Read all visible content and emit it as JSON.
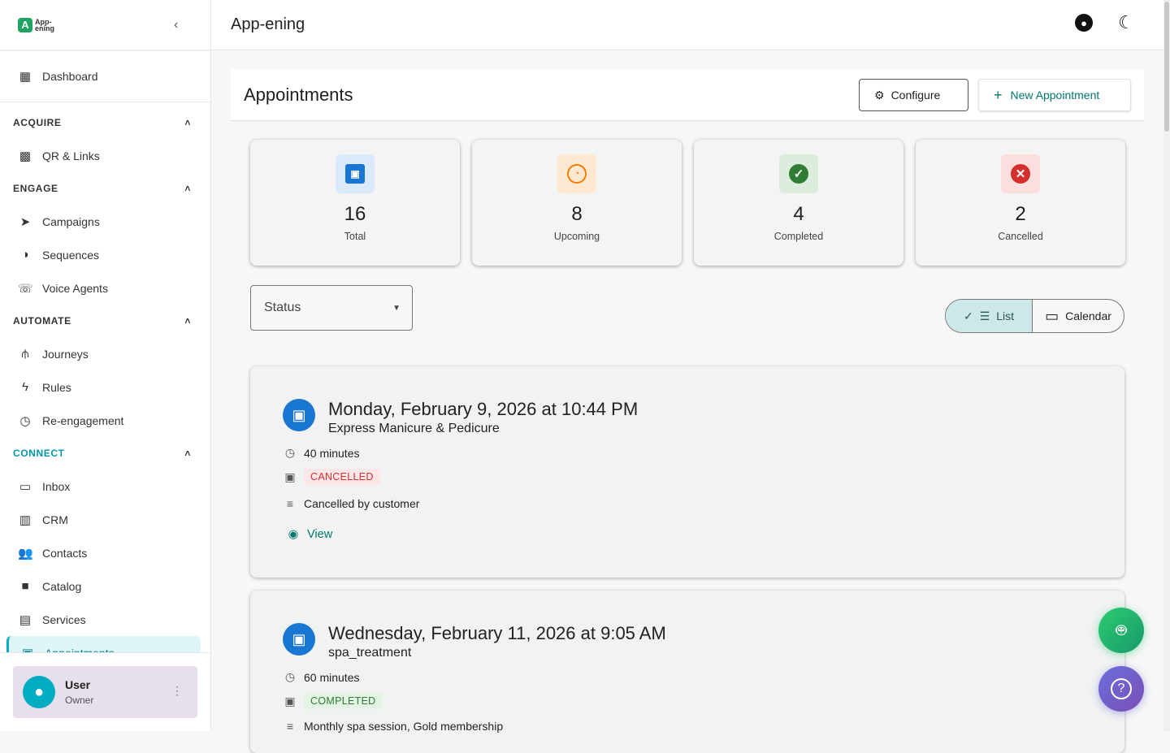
{
  "app": {
    "logo_text": "App-ening",
    "title": "App-ening"
  },
  "sidebar": {
    "dashboard": "Dashboard",
    "sections": [
      {
        "label": "ACQUIRE",
        "items": [
          {
            "label": "QR & Links",
            "icon": "qr-code-icon"
          }
        ]
      },
      {
        "label": "ENGAGE",
        "items": [
          {
            "label": "Campaigns",
            "icon": "send-icon"
          },
          {
            "label": "Sequences",
            "icon": "sequences-icon"
          },
          {
            "label": "Voice Agents",
            "icon": "phone-icon"
          }
        ]
      },
      {
        "label": "AUTOMATE",
        "items": [
          {
            "label": "Journeys",
            "icon": "route-icon"
          },
          {
            "label": "Rules",
            "icon": "bolt-icon"
          },
          {
            "label": "Re-engagement",
            "icon": "clock-icon"
          }
        ]
      },
      {
        "label": "CONNECT",
        "items": [
          {
            "label": "Inbox",
            "icon": "inbox-icon"
          },
          {
            "label": "CRM",
            "icon": "board-icon"
          },
          {
            "label": "Contacts",
            "icon": "people-icon"
          },
          {
            "label": "Catalog",
            "icon": "bag-icon"
          },
          {
            "label": "Services",
            "icon": "store-icon"
          },
          {
            "label": "Appointments",
            "icon": "calendar-icon"
          }
        ]
      }
    ],
    "user": {
      "name": "User",
      "role": "Owner"
    }
  },
  "page": {
    "title": "Appointments",
    "configure": "Configure",
    "new": "New Appointment"
  },
  "stats": [
    {
      "value": "16",
      "label": "Total",
      "color": "#1976d2",
      "bg": "#dbeafb"
    },
    {
      "value": "8",
      "label": "Upcoming",
      "color": "#f57c00",
      "bg": "#fde9d2"
    },
    {
      "value": "4",
      "label": "Completed",
      "color": "#2e7d32",
      "bg": "#dcedde"
    },
    {
      "value": "2",
      "label": "Cancelled",
      "color": "#d32f2f",
      "bg": "#fbdede"
    }
  ],
  "filter": {
    "status": "Status"
  },
  "view": {
    "list": "List",
    "calendar": "Calendar",
    "selected": "List"
  },
  "appointments": [
    {
      "date": "Monday, February 9, 2026 at 10:44 PM",
      "service": "Express Manicure & Pedicure",
      "duration": "40 minutes",
      "status": "CANCELLED",
      "note": "Cancelled by customer",
      "view": "View"
    },
    {
      "date": "Wednesday, February 11, 2026 at 9:05 AM",
      "service": "spa_treatment",
      "duration": "60 minutes",
      "status": "COMPLETED",
      "note": "Monthly spa session, Gold membership"
    }
  ]
}
